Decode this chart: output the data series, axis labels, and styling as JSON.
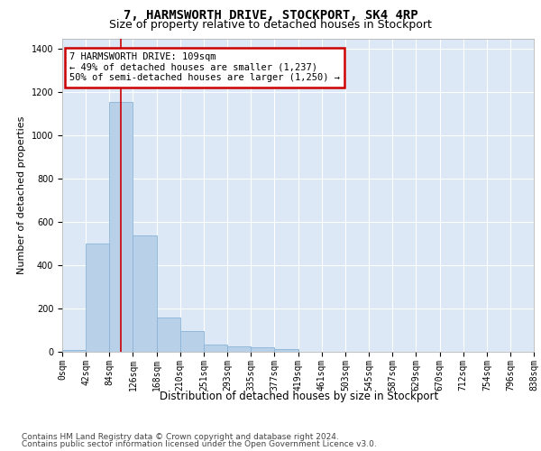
{
  "title": "7, HARMSWORTH DRIVE, STOCKPORT, SK4 4RP",
  "subtitle": "Size of property relative to detached houses in Stockport",
  "xlabel": "Distribution of detached houses by size in Stockport",
  "ylabel": "Number of detached properties",
  "bar_values": [
    10,
    500,
    1155,
    540,
    160,
    95,
    35,
    25,
    20,
    12,
    0,
    0,
    0,
    0,
    0,
    0,
    0,
    0,
    0,
    0
  ],
  "bin_labels": [
    "0sqm",
    "42sqm",
    "84sqm",
    "126sqm",
    "168sqm",
    "210sqm",
    "251sqm",
    "293sqm",
    "335sqm",
    "377sqm",
    "419sqm",
    "461sqm",
    "503sqm",
    "545sqm",
    "587sqm",
    "629sqm",
    "670sqm",
    "712sqm",
    "754sqm",
    "796sqm",
    "838sqm"
  ],
  "bar_color": "#b8d0e8",
  "bar_edge_color": "#7aaar0",
  "vline_x": 2.5,
  "vline_color": "#cc0000",
  "annotation_text": "7 HARMSWORTH DRIVE: 109sqm\n← 49% of detached houses are smaller (1,237)\n50% of semi-detached houses are larger (1,250) →",
  "annotation_box_color": "#ffffff",
  "annotation_box_edge": "#cc0000",
  "ylim": [
    0,
    1450
  ],
  "yticks": [
    0,
    200,
    400,
    600,
    800,
    1000,
    1200,
    1400
  ],
  "bg_color": "#dce8f5",
  "footer_line1": "Contains HM Land Registry data © Crown copyright and database right 2024.",
  "footer_line2": "Contains public sector information licensed under the Open Government Licence v3.0.",
  "title_fontsize": 10,
  "subtitle_fontsize": 9,
  "xlabel_fontsize": 8.5,
  "ylabel_fontsize": 8,
  "tick_fontsize": 7,
  "footer_fontsize": 6.5,
  "annotation_fontsize": 7.5
}
